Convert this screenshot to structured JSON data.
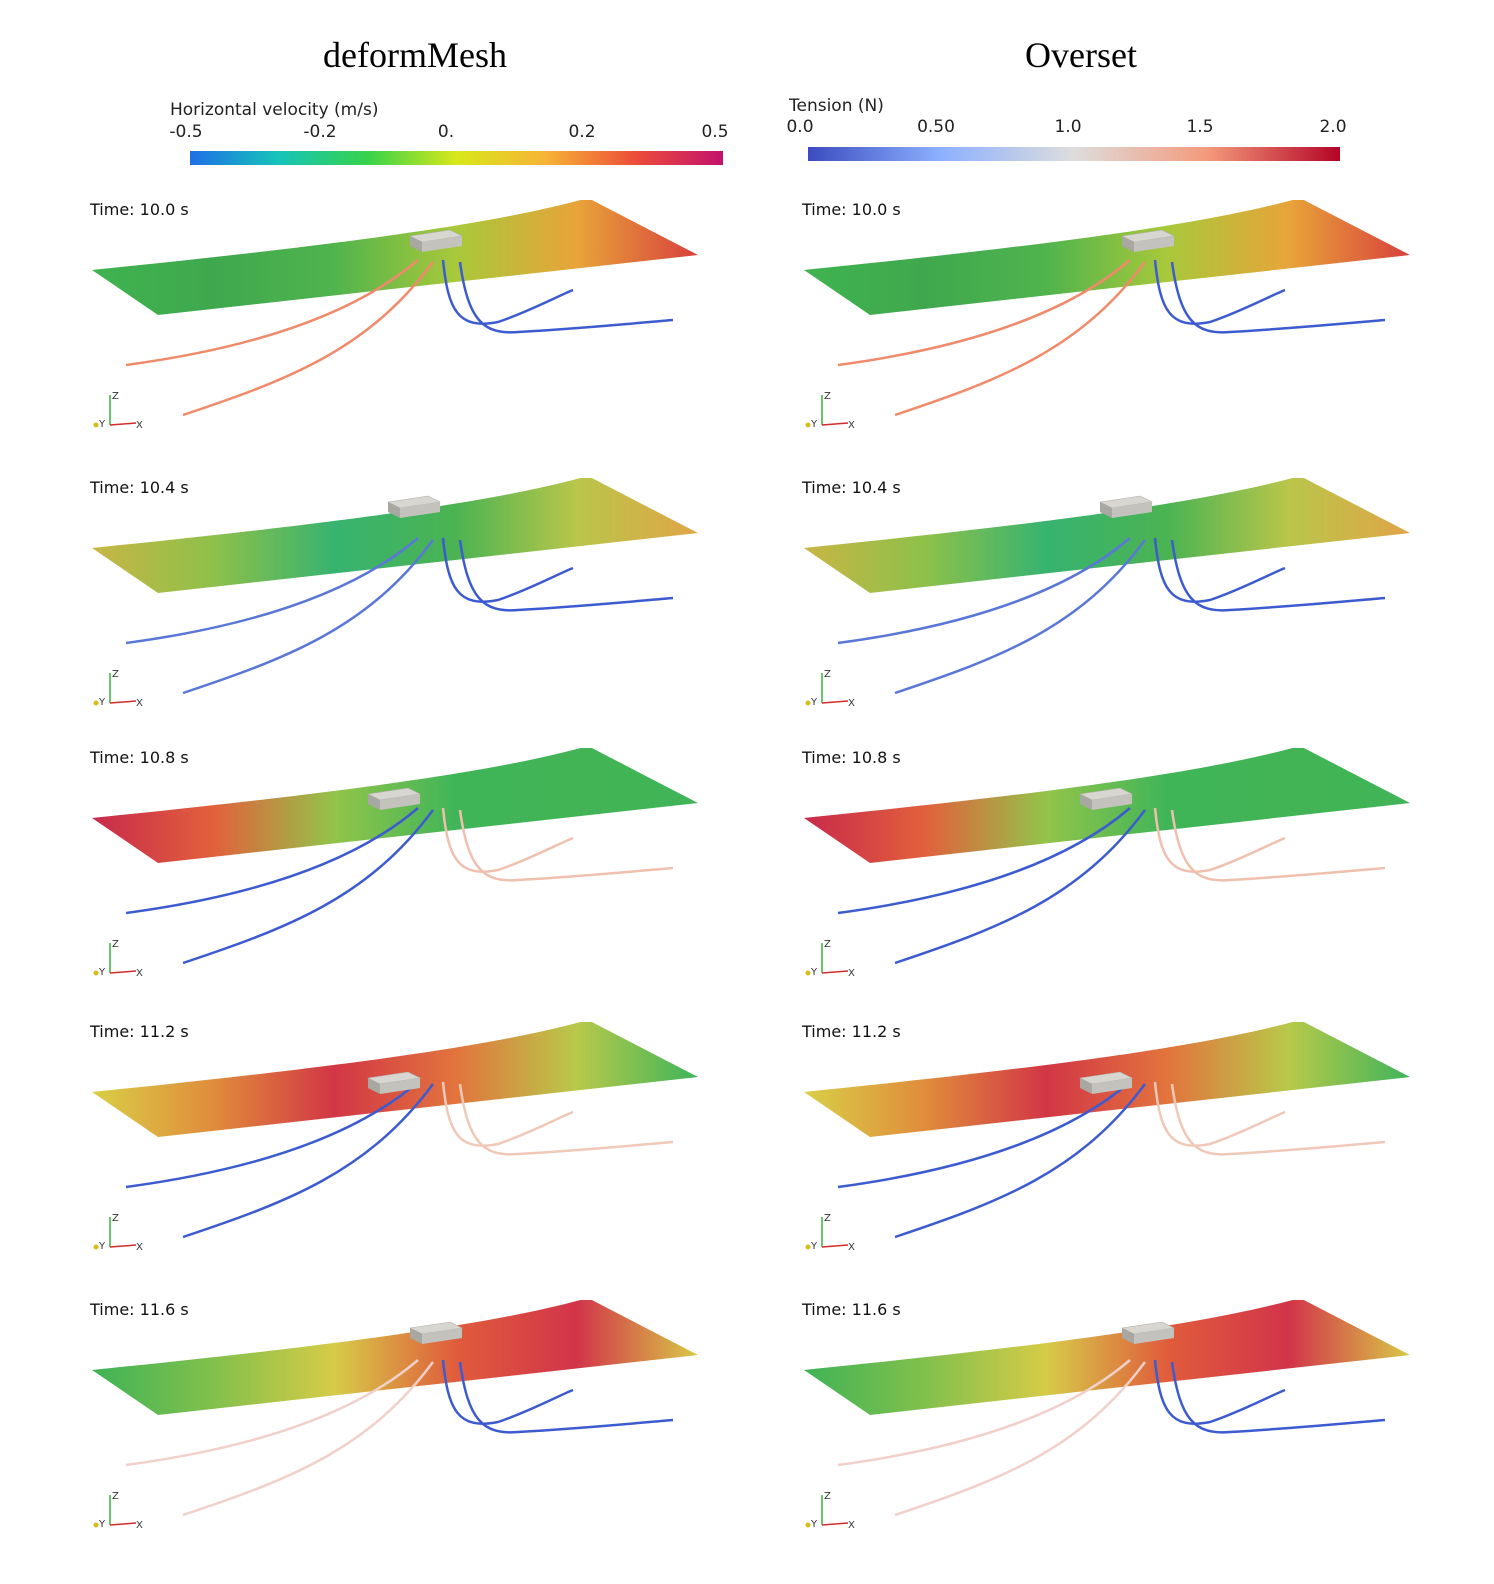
{
  "left": {
    "title": "deformMesh",
    "colorbar": {
      "title": "Horizontal velocity (m/s)",
      "ticks": [
        "-0.5",
        "-0.2",
        "0.",
        "0.2",
        "0.5"
      ],
      "colors": [
        "#1f6fe6",
        "#16c4b8",
        "#37d24a",
        "#d8e81a",
        "#f6b435",
        "#ec4e3a",
        "#c3126c"
      ]
    }
  },
  "right": {
    "title": "Overset",
    "colorbar": {
      "title": "Tension (N)",
      "ticks": [
        "0.0",
        "0.50",
        "1.0",
        "1.5",
        "2.0"
      ],
      "colors": [
        "#3b4cc0",
        "#8db0fe",
        "#dddddd",
        "#f49a7b",
        "#b40426"
      ]
    }
  },
  "axes": {
    "z": "Z",
    "y": "Y",
    "x": "X",
    "z_color": "#3bb33b",
    "y_color": "#d4c01a",
    "x_color": "#d22b2b"
  },
  "panels": [
    {
      "time": "Time: 10.0 s",
      "surface": [
        "#3fb34f",
        "#3fa84e",
        "#50b44d",
        "#a8c83a",
        "#e8a43a",
        "#d8403d"
      ],
      "mooring_left": "#ef8a6a",
      "mooring_right": "#3d5bd0"
    },
    {
      "time": "Time: 10.4 s",
      "surface": [
        "#c8b645",
        "#8ec04a",
        "#37b370",
        "#4bb352",
        "#b9c64a",
        "#e1a448"
      ],
      "mooring_left": "#5a77d8",
      "mooring_right": "#3d5bd0"
    },
    {
      "time": "Time: 10.8 s",
      "surface": [
        "#c82a4b",
        "#e2603c",
        "#92c44a",
        "#3fb558",
        "#42b456",
        "#40b457"
      ],
      "mooring_left": "#3d5bd0",
      "mooring_right": "#f0c0ae"
    },
    {
      "time": "Time: 11.2 s",
      "surface": [
        "#d9cf47",
        "#e08c3b",
        "#d23646",
        "#e2743d",
        "#b8c94a",
        "#3eb45a"
      ],
      "mooring_left": "#3d5bd0",
      "mooring_right": "#f0c8b8"
    },
    {
      "time": "Time: 11.6 s",
      "surface": [
        "#3fb356",
        "#82c04c",
        "#d6cb48",
        "#e05c3c",
        "#d2344a",
        "#d8c846"
      ],
      "mooring_left": "#f0d0c8",
      "mooring_right": "#3d5bd0"
    }
  ]
}
